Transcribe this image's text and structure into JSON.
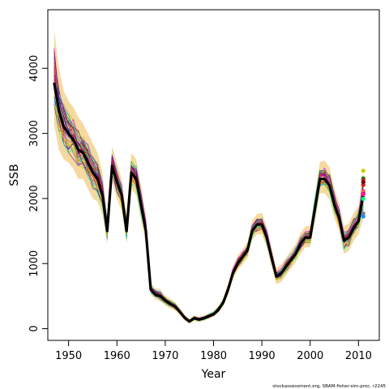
{
  "chart_data": {
    "type": "line",
    "xlabel": "Year",
    "ylabel": "SSB",
    "footnote": "stockassessment.org, SBAM-fisher-sim-proc, r2245",
    "xlim": [
      1945.7,
      2014.3
    ],
    "ylim": [
      -180,
      4900
    ],
    "x_ticks": [
      1950,
      1960,
      1970,
      1980,
      1990,
      2000,
      2010
    ],
    "y_ticks": [
      0,
      1000,
      2000,
      3000,
      4000
    ],
    "band_color": "#F5D9A0",
    "main_series_color": "#000000",
    "spaghetti_colors": [
      "#FF0000",
      "#00AA00",
      "#0000FF",
      "#00CCCC",
      "#FF00FF",
      "#CCCC00",
      "#FFA500",
      "#800080",
      "#A52A2A",
      "#FF1493",
      "#808080",
      "#00FF7F",
      "#1E90FF",
      "#8B0000",
      "#9ACD32"
    ],
    "main_series": {
      "name": "SSB",
      "x": [
        1947,
        1948,
        1949,
        1950,
        1951,
        1952,
        1953,
        1954,
        1955,
        1956,
        1957,
        1958,
        1959,
        1960,
        1961,
        1962,
        1963,
        1964,
        1965,
        1966,
        1967,
        1968,
        1969,
        1970,
        1971,
        1972,
        1973,
        1974,
        1975,
        1976,
        1977,
        1978,
        1979,
        1980,
        1981,
        1982,
        1983,
        1984,
        1985,
        1986,
        1987,
        1988,
        1989,
        1990,
        1991,
        1992,
        1993,
        1994,
        1995,
        1996,
        1997,
        1998,
        1999,
        2000,
        2001,
        2002,
        2003,
        2004,
        2005,
        2006,
        2007,
        2008,
        2009,
        2010,
        2011
      ],
      "y": [
        3780,
        3350,
        3100,
        3000,
        2900,
        2750,
        2700,
        2550,
        2400,
        2300,
        2050,
        1500,
        2500,
        2250,
        2050,
        1500,
        2400,
        2300,
        1900,
        1500,
        600,
        520,
        500,
        430,
        380,
        340,
        260,
        170,
        110,
        160,
        140,
        160,
        190,
        220,
        290,
        400,
        600,
        850,
        1000,
        1100,
        1200,
        1500,
        1600,
        1600,
        1400,
        1100,
        800,
        850,
        950,
        1050,
        1150,
        1300,
        1400,
        1400,
        1850,
        2300,
        2300,
        2200,
        1900,
        1700,
        1350,
        1400,
        1550,
        1650,
        2050
      ]
    },
    "lower_band": [
      3150,
      2750,
      2600,
      2550,
      2450,
      2300,
      2300,
      2150,
      2000,
      1950,
      1750,
      1300,
      2250,
      2000,
      1800,
      1300,
      2150,
      2050,
      1650,
      1300,
      520,
      450,
      420,
      360,
      310,
      280,
      210,
      120,
      80,
      120,
      100,
      120,
      150,
      180,
      240,
      340,
      520,
      760,
      900,
      990,
      1080,
      1360,
      1450,
      1450,
      1250,
      950,
      680,
      720,
      820,
      920,
      1020,
      1150,
      1250,
      1250,
      1650,
      2080,
      2080,
      1980,
      1700,
      1500,
      1150,
      1200,
      1350,
      1450,
      1700
    ],
    "upper_band": [
      4600,
      4000,
      3650,
      3500,
      3400,
      3250,
      3150,
      3000,
      2850,
      2700,
      2400,
      1750,
      2800,
      2550,
      2300,
      1750,
      2700,
      2600,
      2200,
      1750,
      700,
      620,
      600,
      510,
      460,
      410,
      320,
      220,
      150,
      210,
      180,
      210,
      240,
      270,
      350,
      470,
      690,
      960,
      1120,
      1220,
      1330,
      1660,
      1760,
      1780,
      1570,
      1260,
      930,
      990,
      1090,
      1200,
      1300,
      1470,
      1570,
      1580,
      2070,
      2560,
      2580,
      2480,
      2150,
      1930,
      1570,
      1620,
      1780,
      1880,
      2450
    ]
  }
}
